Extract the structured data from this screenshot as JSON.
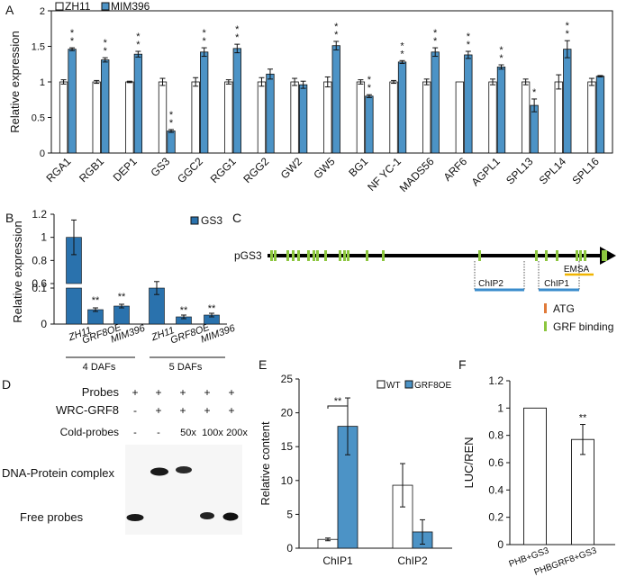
{
  "figure": {
    "panels": {
      "A": "A",
      "B": "B",
      "C": "C",
      "D": "D",
      "E": "E",
      "F": "F"
    }
  },
  "chart_data": [
    {
      "id": "A",
      "type": "bar",
      "ylabel": "Relative expression",
      "ylim": [
        0,
        2
      ],
      "yticks": [
        0,
        0.5,
        1,
        1.5,
        2
      ],
      "ytick_labels": [
        "0",
        "0.5",
        "1",
        "1.5",
        "2"
      ],
      "categories": [
        "RGA1",
        "RGB1",
        "DEP1",
        "GS3",
        "GGC2",
        "RGG1",
        "RGG2",
        "GW2",
        "GW5",
        "BG1",
        "NF YC-1",
        "MADS56",
        "ARF6",
        "AGPL1",
        "SPL13",
        "SPL14",
        "SPL16"
      ],
      "series": [
        {
          "name": "ZH11",
          "color": "#ffffff",
          "values": [
            1,
            1,
            1,
            1,
            1,
            1,
            1,
            1,
            1,
            1,
            1,
            1,
            1,
            1,
            1,
            1,
            1
          ],
          "errors": [
            0.03,
            0.02,
            0.01,
            0.05,
            0.06,
            0.03,
            0.06,
            0.05,
            0.07,
            0.03,
            0.02,
            0.04,
            0.0,
            0.04,
            0.04,
            0.1,
            0.05
          ]
        },
        {
          "name": "MIM396",
          "color": "#4c93c6",
          "values": [
            1.46,
            1.31,
            1.39,
            0.31,
            1.42,
            1.47,
            1.11,
            0.96,
            1.51,
            0.8,
            1.28,
            1.42,
            1.38,
            1.21,
            0.67,
            1.46,
            1.08
          ],
          "errors": [
            0.02,
            0.03,
            0.04,
            0.02,
            0.06,
            0.06,
            0.07,
            0.05,
            0.06,
            0.02,
            0.02,
            0.06,
            0.05,
            0.03,
            0.09,
            0.12,
            0.01
          ]
        }
      ],
      "annotations": [
        "**",
        "**",
        "**",
        "**",
        "**",
        "**",
        "",
        "",
        "**",
        "**",
        "**",
        "**",
        "**",
        "**",
        "*",
        "**",
        ""
      ]
    },
    {
      "id": "B",
      "type": "bar",
      "ylabel": "Relative expression",
      "legend": "GS3",
      "ytick_labels": [
        "0",
        "0.1",
        "0.6",
        "0.8",
        "1",
        "1.2"
      ],
      "categories": [
        "ZH11",
        "GRF8OE",
        "MIM396",
        "ZH11",
        "GRF8OE",
        "MIM396"
      ],
      "groups": [
        "4 DAFs",
        "5 DAFs"
      ],
      "values": [
        1.0,
        0.04,
        0.05,
        0.1,
        0.02,
        0.025
      ],
      "annotations": [
        "",
        "**",
        "**",
        "",
        "**",
        "**"
      ],
      "color": "#2a72ad"
    },
    {
      "id": "C",
      "type": "diagram",
      "construct": "pGS3",
      "labels": [
        "ChIP2",
        "ChIP1",
        "EMSA"
      ],
      "legend": [
        {
          "label": "ATG",
          "color": "#e07a3a"
        },
        {
          "label": "GRF binding motif",
          "color": "#8cc63e"
        }
      ]
    },
    {
      "id": "D",
      "type": "gel",
      "row_labels": [
        "Probes",
        "WRC-GRF8",
        "Cold-probes"
      ],
      "lanes": [
        {
          "probes": "+",
          "grf8": "-",
          "cold": "-"
        },
        {
          "probes": "+",
          "grf8": "+",
          "cold": "-"
        },
        {
          "probes": "+",
          "grf8": "+",
          "cold": "50x"
        },
        {
          "probes": "+",
          "grf8": "+",
          "cold": "100x"
        },
        {
          "probes": "+",
          "grf8": "+",
          "cold": "200x"
        }
      ],
      "band_labels": [
        "DNA-Protein complex",
        "Free probes"
      ]
    },
    {
      "id": "E",
      "type": "bar",
      "ylabel": "Relative content",
      "ylim": [
        0,
        25
      ],
      "ytick_labels": [
        "0",
        "5",
        "10",
        "15",
        "20",
        "25"
      ],
      "categories": [
        "ChIP1",
        "ChIP2"
      ],
      "series": [
        {
          "name": "WT",
          "values": [
            1.3,
            9.3
          ],
          "errors": [
            0.2,
            3.2
          ]
        },
        {
          "name": "GRF8OE",
          "values": [
            18.0,
            2.4
          ],
          "errors": [
            4.2,
            1.8
          ]
        }
      ],
      "annotation": "**"
    },
    {
      "id": "F",
      "type": "bar",
      "ylabel": "LUC/REN",
      "ylim": [
        0,
        1.2
      ],
      "ytick_labels": [
        "0",
        "0.2",
        "0.4",
        "0.6",
        "0.8",
        "1",
        "1.2"
      ],
      "categories": [
        "PHB+GS3",
        "PHBGRF8+GS3"
      ],
      "values": [
        1.0,
        0.77
      ],
      "errors": [
        0.0,
        0.11
      ],
      "annotations": [
        "",
        "**"
      ]
    }
  ]
}
